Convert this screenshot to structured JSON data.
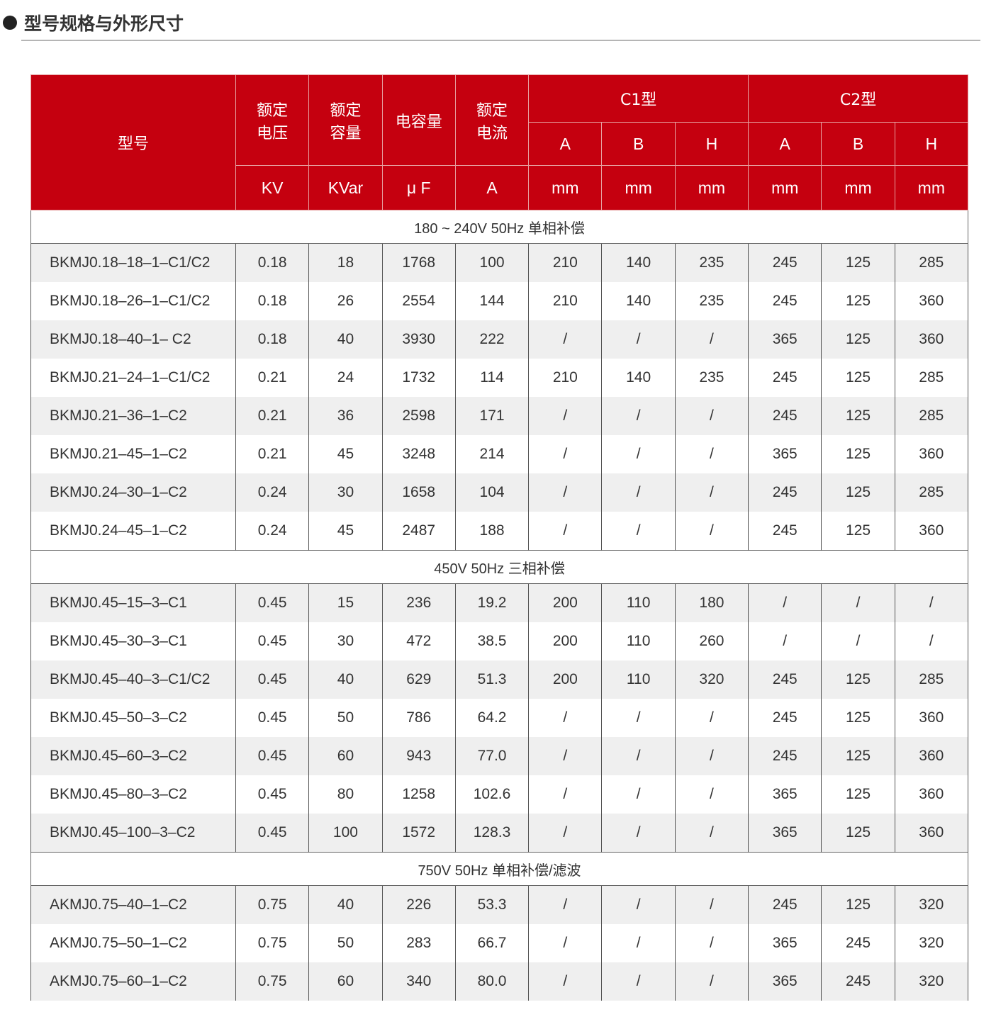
{
  "title": "型号规格与外形尺寸",
  "header": {
    "model": "型号",
    "voltage": "额定\n电压",
    "capacity": "额定\n容量",
    "capacitance": "电容量",
    "current": "额定\n电流",
    "c1": "C1型",
    "c2": "C2型",
    "dims": [
      "A",
      "B",
      "H",
      "A",
      "B",
      "H"
    ],
    "units": [
      "KV",
      "KVar",
      "μ F",
      "A",
      "mm",
      "mm",
      "mm",
      "mm",
      "mm",
      "mm"
    ]
  },
  "sections": [
    {
      "label": "180 ~ 240V 50Hz 单相补偿",
      "rows": [
        [
          "BKMJ0.18–18–1–C1/C2",
          "0.18",
          "18",
          "1768",
          "100",
          "210",
          "140",
          "235",
          "245",
          "125",
          "285"
        ],
        [
          "BKMJ0.18–26–1–C1/C2",
          "0.18",
          "26",
          "2554",
          "144",
          "210",
          "140",
          "235",
          "245",
          "125",
          "360"
        ],
        [
          "BKMJ0.18–40–1– C2",
          "0.18",
          "40",
          "3930",
          "222",
          "/",
          "/",
          "/",
          "365",
          "125",
          "360"
        ],
        [
          "BKMJ0.21–24–1–C1/C2",
          "0.21",
          "24",
          "1732",
          "114",
          "210",
          "140",
          "235",
          "245",
          "125",
          "285"
        ],
        [
          "BKMJ0.21–36–1–C2",
          "0.21",
          "36",
          "2598",
          "171",
          "/",
          "/",
          "/",
          "245",
          "125",
          "285"
        ],
        [
          "BKMJ0.21–45–1–C2",
          "0.21",
          "45",
          "3248",
          "214",
          "/",
          "/",
          "/",
          "365",
          "125",
          "360"
        ],
        [
          "BKMJ0.24–30–1–C2",
          "0.24",
          "30",
          "1658",
          "104",
          "/",
          "/",
          "/",
          "245",
          "125",
          "285"
        ],
        [
          "BKMJ0.24–45–1–C2",
          "0.24",
          "45",
          "2487",
          "188",
          "/",
          "/",
          "/",
          "245",
          "125",
          "360"
        ]
      ]
    },
    {
      "label": "450V 50Hz 三相补偿",
      "rows": [
        [
          "BKMJ0.45–15–3–C1",
          "0.45",
          "15",
          "236",
          "19.2",
          "200",
          "110",
          "180",
          "/",
          "/",
          "/"
        ],
        [
          "BKMJ0.45–30–3–C1",
          "0.45",
          "30",
          "472",
          "38.5",
          "200",
          "110",
          "260",
          "/",
          "/",
          "/"
        ],
        [
          "BKMJ0.45–40–3–C1/C2",
          "0.45",
          "40",
          "629",
          "51.3",
          "200",
          "110",
          "320",
          "245",
          "125",
          "285"
        ],
        [
          "BKMJ0.45–50–3–C2",
          "0.45",
          "50",
          "786",
          "64.2",
          "/",
          "/",
          "/",
          "245",
          "125",
          "360"
        ],
        [
          "BKMJ0.45–60–3–C2",
          "0.45",
          "60",
          "943",
          "77.0",
          "/",
          "/",
          "/",
          "245",
          "125",
          "360"
        ],
        [
          "BKMJ0.45–80–3–C2",
          "0.45",
          "80",
          "1258",
          "102.6",
          "/",
          "/",
          "/",
          "365",
          "125",
          "360"
        ],
        [
          "BKMJ0.45–100–3–C2",
          "0.45",
          "100",
          "1572",
          "128.3",
          "/",
          "/",
          "/",
          "365",
          "125",
          "360"
        ]
      ]
    },
    {
      "label": "750V 50Hz 单相补偿/滤波",
      "rows": [
        [
          "AKMJ0.75–40–1–C2",
          "0.75",
          "40",
          "226",
          "53.3",
          "/",
          "/",
          "/",
          "245",
          "125",
          "320"
        ],
        [
          "AKMJ0.75–50–1–C2",
          "0.75",
          "50",
          "283",
          "66.7",
          "/",
          "/",
          "/",
          "365",
          "245",
          "320"
        ],
        [
          "AKMJ0.75–60–1–C2",
          "0.75",
          "60",
          "340",
          "80.0",
          "/",
          "/",
          "/",
          "365",
          "245",
          "320"
        ]
      ]
    }
  ],
  "colors": {
    "header_bg": "#c5000f",
    "shade": "#efefef"
  }
}
